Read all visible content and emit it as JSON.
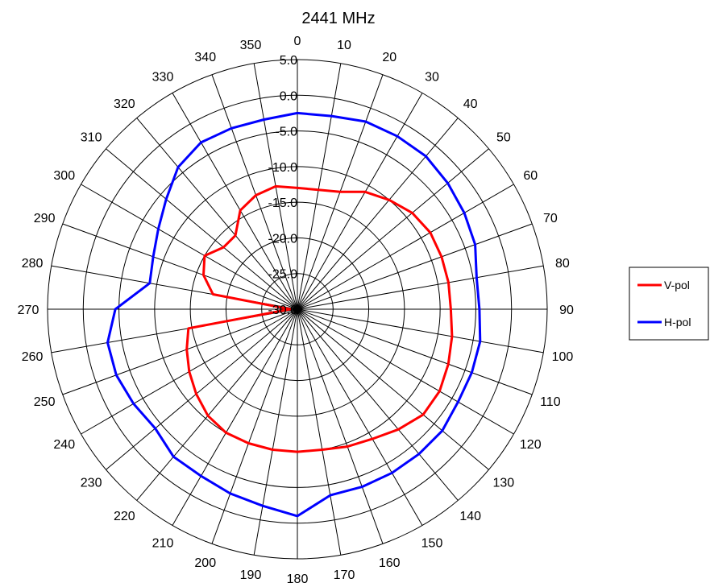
{
  "chart_data": {
    "type": "polar-line",
    "title": "2441 MHz",
    "angle_ticks": [
      0,
      10,
      20,
      30,
      40,
      50,
      60,
      70,
      80,
      90,
      100,
      110,
      120,
      130,
      140,
      150,
      160,
      170,
      180,
      190,
      200,
      210,
      220,
      230,
      240,
      250,
      260,
      270,
      280,
      290,
      300,
      310,
      320,
      330,
      340,
      350
    ],
    "radial_ticks": [
      "5.0",
      "0.0",
      "-5.0",
      "-10.0",
      "-15.0",
      "-20.0",
      "-25.0",
      "-30.0"
    ],
    "rlim": [
      -30,
      5
    ],
    "grid": true,
    "legend_position": "right",
    "angles": [
      0,
      10,
      20,
      30,
      40,
      50,
      60,
      70,
      80,
      90,
      100,
      110,
      120,
      130,
      140,
      150,
      160,
      170,
      180,
      190,
      200,
      210,
      220,
      230,
      240,
      250,
      260,
      270,
      280,
      290,
      300,
      310,
      320,
      330,
      340,
      350
    ],
    "series": [
      {
        "name": "V-pol",
        "color": "#ff0000",
        "values": [
          -13.0,
          -13.0,
          -12.5,
          -11.0,
          -10.0,
          -9.0,
          -8.5,
          -8.5,
          -8.5,
          -8.5,
          -8.0,
          -7.5,
          -7.0,
          -7.0,
          -8.0,
          -9.0,
          -9.5,
          -10.0,
          -10.0,
          -10.0,
          -10.0,
          -10.0,
          -10.5,
          -11.5,
          -12.5,
          -13.5,
          -14.5,
          -29.0,
          -18.0,
          -16.0,
          -15.0,
          -16.5,
          -16.5,
          -14.0,
          -13.0,
          -12.5
        ]
      },
      {
        "name": "H-pol",
        "color": "#0000ff",
        "values": [
          -2.5,
          -2.5,
          -2.0,
          -2.0,
          -2.0,
          -2.5,
          -3.0,
          -3.5,
          -4.5,
          -4.5,
          -4.0,
          -4.0,
          -4.0,
          -3.5,
          -3.5,
          -3.5,
          -3.5,
          -3.5,
          -1.0,
          -2.0,
          -2.5,
          -3.0,
          -3.0,
          -4.0,
          -3.5,
          -3.0,
          -3.0,
          -4.5,
          -9.0,
          -8.5,
          -7.5,
          -6.0,
          -4.0,
          -3.0,
          -3.0,
          -3.0
        ]
      }
    ]
  }
}
